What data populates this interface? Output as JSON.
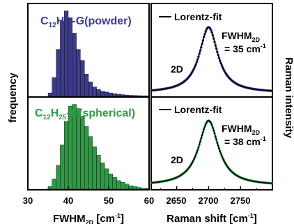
{
  "chart_data": [
    {
      "type": "bar",
      "panel": "top-left",
      "label_main": "C",
      "label_sub1": "12",
      "label_mid": "H",
      "label_sub2": "25",
      "label_tail": "-G(powder)",
      "color": "#3d3b8e",
      "bin_width": 1,
      "bin_start": 30,
      "values": [
        0,
        0,
        0,
        0,
        0,
        0.04,
        0.22,
        0.55,
        0.88,
        1.0,
        0.92,
        0.74,
        0.55,
        0.42,
        0.26,
        0.17,
        0.11,
        0.08,
        0.06,
        0.05,
        0.04,
        0.03,
        0.025,
        0.02,
        0.015,
        0.012,
        0.01,
        0.008,
        0.006,
        0.005
      ],
      "ylabel": "frequency"
    },
    {
      "type": "bar",
      "panel": "bottom-left",
      "label_main": "C",
      "label_sub1": "12",
      "label_mid": "H",
      "label_sub2": "25",
      "label_tail": "-G(spherical)",
      "color": "#2e9a44",
      "bin_width": 1,
      "bin_start": 30,
      "values": [
        0,
        0,
        0,
        0,
        0,
        0.03,
        0.12,
        0.28,
        0.52,
        0.8,
        0.98,
        1.0,
        0.95,
        0.86,
        0.74,
        0.62,
        0.5,
        0.4,
        0.31,
        0.24,
        0.18,
        0.14,
        0.1,
        0.08,
        0.06,
        0.04,
        0.03,
        0.02,
        0.01,
        0.01
      ],
      "xlabel_main": "FWHM",
      "xlabel_sub": "2D",
      "xlabel_tail": " [cm",
      "xlabel_sup": "-1",
      "xlabel_close": "]",
      "xticks": [
        "30",
        "40",
        "50",
        "60"
      ],
      "xlim": [
        30,
        60
      ]
    },
    {
      "type": "line",
      "panel": "top-right",
      "legend": "Lorentz-fit",
      "band": "2D",
      "fwhm_main": "FWHM",
      "fwhm_sub": "2D",
      "fwhm_eq": "= 35 cm",
      "fwhm_sup": "-1",
      "center": 2700,
      "fwhm": 35,
      "color": "#3d3b8e",
      "xlim": [
        2610,
        2800
      ],
      "ylabel": "Raman intensity"
    },
    {
      "type": "line",
      "panel": "bottom-right",
      "legend": "Lorentz-fit",
      "band": "2D",
      "fwhm_main": "FWHM",
      "fwhm_sub": "2D",
      "fwhm_eq": "= 38 cm",
      "fwhm_sup": "-1",
      "center": 2700,
      "fwhm": 38,
      "color": "#2e9a44",
      "xlim": [
        2610,
        2800
      ],
      "xticks": [
        "2650",
        "2700",
        "2750"
      ],
      "xlabel_main": "Raman shift [cm",
      "xlabel_sup": "-1",
      "xlabel_close": "]"
    }
  ]
}
